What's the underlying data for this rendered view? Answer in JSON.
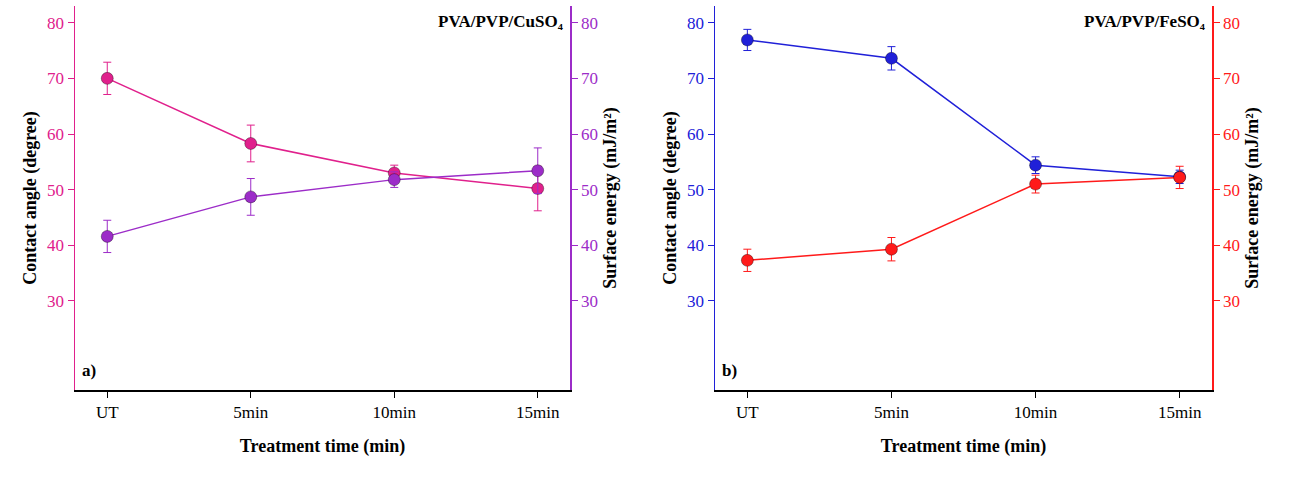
{
  "chart_data": [
    {
      "type": "line",
      "title": "PVA/PVP/CuSO₄",
      "panel_label": "a)",
      "x_label": "Treatment time (min)",
      "y_label": "Contact angle (degree)",
      "y2_label": "Surface energy (mJ/m²)",
      "categories": [
        "UT",
        "5min",
        "10min",
        "15min"
      ],
      "ylim": [
        14,
        83
      ],
      "yticks": [
        30,
        40,
        50,
        60,
        70,
        80
      ],
      "y2lim": [
        14,
        83
      ],
      "y2ticks": [
        30,
        40,
        50,
        60,
        70,
        80
      ],
      "grid": false,
      "series": [
        {
          "color": "#e0208c",
          "axis": "y",
          "marker": "circle",
          "line_style": "solid",
          "values": [
            70.0,
            58.3,
            53.0,
            50.2
          ],
          "errors": [
            2.9,
            3.3,
            1.4,
            4.0
          ]
        },
        {
          "color": "#9c2cc8",
          "axis": "y2",
          "marker": "circle",
          "line_style": "solid",
          "values": [
            41.6,
            48.7,
            51.8,
            53.4
          ],
          "errors": [
            2.9,
            3.3,
            1.4,
            4.1
          ]
        }
      ]
    },
    {
      "type": "line",
      "title": "PVA/PVP/FeSO₄",
      "panel_label": "b)",
      "x_label": "Treatment time (min)",
      "y_label": "Contact angle (degree)",
      "y2_label": "Surface energy (mJ/m²)",
      "categories": [
        "UT",
        "5min",
        "10min",
        "15min"
      ],
      "ylim": [
        14,
        83
      ],
      "yticks": [
        30,
        40,
        50,
        60,
        70,
        80
      ],
      "y2lim": [
        14,
        83
      ],
      "y2ticks": [
        30,
        40,
        50,
        60,
        70,
        80
      ],
      "grid": false,
      "series": [
        {
          "color": "#2020d8",
          "axis": "y",
          "marker": "circle",
          "line_style": "solid",
          "values": [
            76.9,
            73.6,
            54.4,
            52.3
          ],
          "errors": [
            1.9,
            2.1,
            1.5,
            1.2
          ]
        },
        {
          "color": "#ff1a1a",
          "axis": "y2",
          "marker": "circle",
          "line_style": "solid",
          "values": [
            37.3,
            39.3,
            51.0,
            52.2
          ],
          "errors": [
            2.0,
            2.1,
            1.6,
            2.0
          ]
        }
      ]
    }
  ]
}
